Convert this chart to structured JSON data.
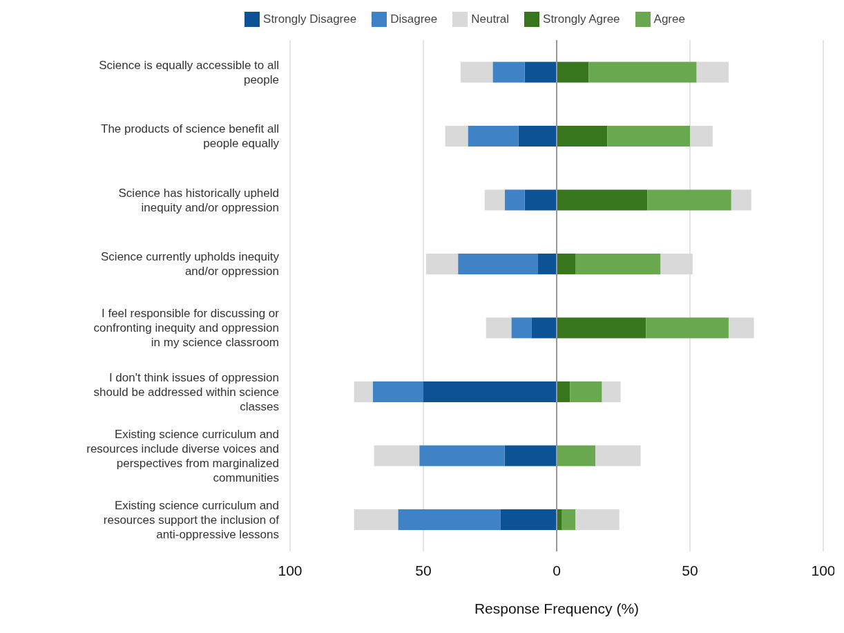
{
  "chart_data": {
    "type": "bar",
    "orientation": "horizontal",
    "stacked": true,
    "categories": [
      "Science is equally accessible to all people",
      "The products of science benefit all people equally",
      "Science has historically upheld inequity and/or oppression",
      "Science currently upholds inequity and/or oppression",
      "I feel responsible for discussing or confronting inequity and oppression in my science classroom",
      "I don't think issues of oppression should be addressed within science classes",
      "Existing science curriculum and resources include diverse voices and perspectives from marginalized communities",
      "Existing science curriculum and resources support the inclusion of anti-oppressive lessons"
    ],
    "series": [
      {
        "name": "Strongly Disagree",
        "color": "#0e5296",
        "values": [
          -12,
          -14.3,
          -12,
          -7,
          -9.5,
          -50,
          -19.5,
          -21
        ]
      },
      {
        "name": "Disagree",
        "color": "#3f83c6",
        "values": [
          -12,
          -19,
          -7.5,
          -30,
          -7.5,
          -19,
          -32,
          -38.5
        ]
      },
      {
        "name": "Neutral",
        "color": "#d9d9d9",
        "values": [
          -12,
          -8.5,
          -7.5,
          -12,
          -9.5,
          -7,
          -17,
          -16.5
        ]
      },
      {
        "name": "Strongly Agree",
        "color": "#38761d",
        "values": [
          12,
          19,
          34,
          7,
          33.5,
          5,
          0,
          2
        ]
      },
      {
        "name": "Agree",
        "color": "#6aa84f",
        "values": [
          40.5,
          31,
          31.5,
          32,
          31,
          12,
          14.5,
          5
        ]
      },
      {
        "color": "#d9d9d9",
        "values": [
          12,
          8.5,
          7.5,
          12,
          9.5,
          7,
          17,
          16.5
        ]
      }
    ],
    "xlim": [
      -100,
      100
    ],
    "xticks": [
      {
        "value": -100,
        "label": "100"
      },
      {
        "value": -50,
        "label": "50"
      },
      0,
      50,
      100
    ],
    "xlabel": "Response Frequency (%)",
    "grid": "x",
    "legend": "top",
    "ref_lines": [
      {
        "axis": "x",
        "value": 0,
        "color": "#999999"
      }
    ]
  }
}
